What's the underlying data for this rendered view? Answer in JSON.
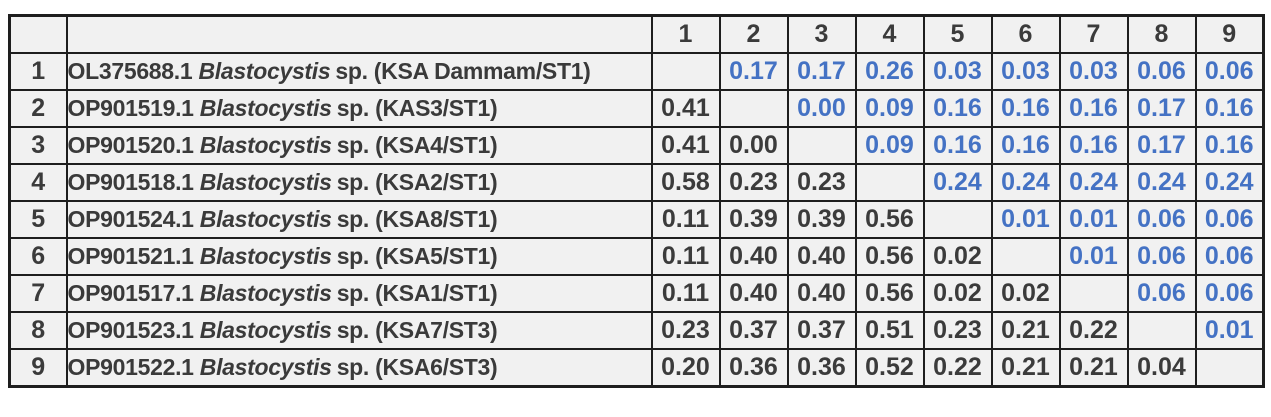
{
  "chart_data": {
    "type": "table",
    "column_headers": [
      "1",
      "2",
      "3",
      "4",
      "5",
      "6",
      "7",
      "8",
      "9"
    ],
    "rows": [
      {
        "index": "1",
        "accession": "OL375688.1",
        "genus": "Blastocystis",
        "label_rest": "sp. (KSA Dammam/ST1)",
        "values": [
          null,
          "0.17",
          "0.17",
          "0.26",
          "0.03",
          "0.03",
          "0.03",
          "0.06",
          "0.06"
        ]
      },
      {
        "index": "2",
        "accession": "OP901519.1",
        "genus": "Blastocystis",
        "label_rest": "sp. (KAS3/ST1)",
        "values": [
          "0.41",
          null,
          "0.00",
          "0.09",
          "0.16",
          "0.16",
          "0.16",
          "0.17",
          "0.16"
        ]
      },
      {
        "index": "3",
        "accession": "OP901520.1",
        "genus": "Blastocystis",
        "label_rest": "sp. (KSA4/ST1)",
        "values": [
          "0.41",
          "0.00",
          null,
          "0.09",
          "0.16",
          "0.16",
          "0.16",
          "0.17",
          "0.16"
        ]
      },
      {
        "index": "4",
        "accession": "OP901518.1",
        "genus": "Blastocystis",
        "label_rest": "sp. (KSA2/ST1)",
        "values": [
          "0.58",
          "0.23",
          "0.23",
          null,
          "0.24",
          "0.24",
          "0.24",
          "0.24",
          "0.24"
        ]
      },
      {
        "index": "5",
        "accession": "OP901524.1",
        "genus": "Blastocystis",
        "label_rest": "sp. (KSA8/ST1)",
        "values": [
          "0.11",
          "0.39",
          "0.39",
          "0.56",
          null,
          "0.01",
          "0.01",
          "0.06",
          "0.06"
        ]
      },
      {
        "index": "6",
        "accession": "OP901521.1",
        "genus": "Blastocystis",
        "label_rest": "sp. (KSA5/ST1)",
        "values": [
          "0.11",
          "0.40",
          "0.40",
          "0.56",
          "0.02",
          null,
          "0.01",
          "0.06",
          "0.06"
        ]
      },
      {
        "index": "7",
        "accession": "OP901517.1",
        "genus": "Blastocystis",
        "label_rest": "sp. (KSA1/ST1)",
        "values": [
          "0.11",
          "0.40",
          "0.40",
          "0.56",
          "0.02",
          "0.02",
          null,
          "0.06",
          "0.06"
        ]
      },
      {
        "index": "8",
        "accession": "OP901523.1",
        "genus": "Blastocystis",
        "label_rest": "sp. (KSA7/ST3)",
        "values": [
          "0.23",
          "0.37",
          "0.37",
          "0.51",
          "0.23",
          "0.21",
          "0.22",
          null,
          "0.01"
        ]
      },
      {
        "index": "9",
        "accession": "OP901522.1",
        "genus": "Blastocystis",
        "label_rest": "sp. (KSA6/ST3)",
        "values": [
          "0.20",
          "0.36",
          "0.36",
          "0.52",
          "0.22",
          "0.21",
          "0.21",
          "0.04",
          null
        ]
      }
    ],
    "layout_hints": {
      "upper_triangle": "blue text",
      "lower_triangle": "dark text",
      "diagonal": "solid black fill"
    },
    "colors": {
      "upper_triangle_text": "#4472c4",
      "lower_triangle_text": "#3b3b3b",
      "header_text": "#3b3b3b",
      "label_text": "#3a3a3a",
      "diagonal_fill": "#000000",
      "cell_background": "#f1f1f1",
      "border": "#1e1e1e",
      "page_background": "#ffffff"
    }
  }
}
